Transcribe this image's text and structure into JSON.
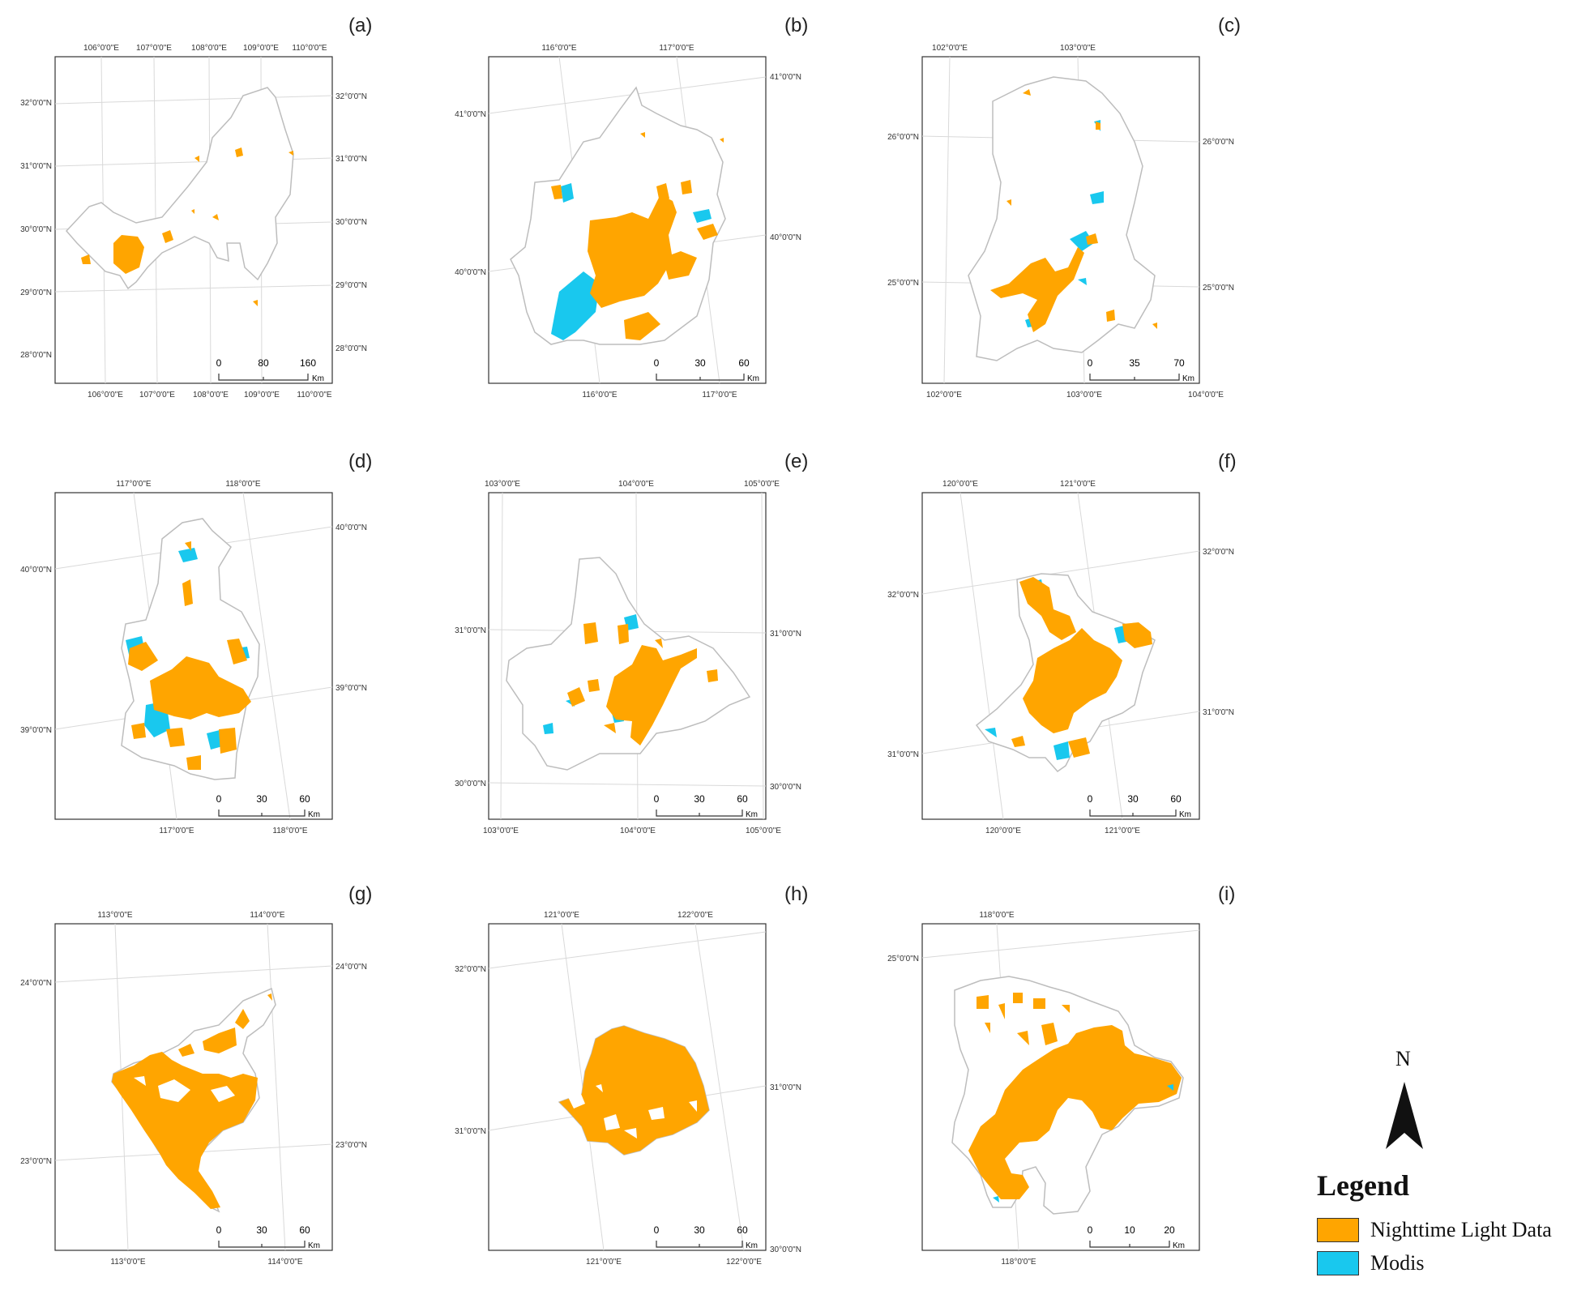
{
  "colors": {
    "light": "#FFA500",
    "modis": "#19C8EE",
    "boundary": "#BDBDBD",
    "grid": "#D9D9D9",
    "frame": "#333333"
  },
  "legend": {
    "title": "Legend",
    "items": [
      {
        "label": "Nighttime Light Data",
        "color": "#FFA500"
      },
      {
        "label": "Modis",
        "color": "#19C8EE"
      }
    ]
  },
  "north_arrow": {
    "label": "N",
    "icon": "north-arrow-icon"
  },
  "scale_unit": "Km",
  "panels": [
    {
      "id": "a",
      "letter": "(a)",
      "scale_labels": [
        "0",
        "80",
        "160"
      ],
      "top_lon": [
        "106°0'0\"E",
        "107°0'0\"E",
        "108°0'0\"E",
        "109°0'0\"E",
        "110°0'0\"E"
      ],
      "bottom_lon": [
        "106°0'0\"E",
        "107°0'0\"E",
        "108°0'0\"E",
        "109°0'0\"E",
        "110°0'0\"E"
      ],
      "left_lat": [
        "32°0'0\"N",
        "31°0'0\"N",
        "30°0'0\"N",
        "29°0'0\"N",
        "28°0'0\"N"
      ],
      "right_lat": [
        "32°0'0\"N",
        "31°0'0\"N",
        "30°0'0\"N",
        "29°0'0\"N",
        "28°0'0\"N"
      ]
    },
    {
      "id": "b",
      "letter": "(b)",
      "scale_labels": [
        "0",
        "30",
        "60"
      ],
      "top_lon": [
        "116°0'0\"E",
        "117°0'0\"E"
      ],
      "bottom_lon": [
        "116°0'0\"E",
        "117°0'0\"E"
      ],
      "left_lat": [
        "41°0'0\"N",
        "40°0'0\"N"
      ],
      "right_lat": [
        "41°0'0\"N",
        "40°0'0\"N"
      ]
    },
    {
      "id": "c",
      "letter": "(c)",
      "scale_labels": [
        "0",
        "35",
        "70"
      ],
      "top_lon": [
        "102°0'0\"E",
        "103°0'0\"E"
      ],
      "bottom_lon": [
        "102°0'0\"E",
        "103°0'0\"E",
        "104°0'0\"E"
      ],
      "left_lat": [
        "26°0'0\"N",
        "25°0'0\"N"
      ],
      "right_lat": [
        "26°0'0\"N",
        "25°0'0\"N"
      ]
    },
    {
      "id": "d",
      "letter": "(d)",
      "scale_labels": [
        "0",
        "30",
        "60"
      ],
      "top_lon": [
        "117°0'0\"E",
        "118°0'0\"E"
      ],
      "bottom_lon": [
        "117°0'0\"E",
        "118°0'0\"E"
      ],
      "left_lat": [
        "40°0'0\"N",
        "39°0'0\"N"
      ],
      "right_lat": [
        "40°0'0\"N",
        "39°0'0\"N"
      ]
    },
    {
      "id": "e",
      "letter": "(e)",
      "scale_labels": [
        "0",
        "30",
        "60"
      ],
      "top_lon": [
        "103°0'0\"E",
        "104°0'0\"E",
        "105°0'0\"E"
      ],
      "bottom_lon": [
        "103°0'0\"E",
        "104°0'0\"E",
        "105°0'0\"E"
      ],
      "left_lat": [
        "31°0'0\"N",
        "30°0'0\"N"
      ],
      "right_lat": [
        "31°0'0\"N",
        "30°0'0\"N"
      ]
    },
    {
      "id": "f",
      "letter": "(f)",
      "scale_labels": [
        "0",
        "30",
        "60"
      ],
      "top_lon": [
        "120°0'0\"E",
        "121°0'0\"E"
      ],
      "bottom_lon": [
        "120°0'0\"E",
        "121°0'0\"E"
      ],
      "left_lat": [
        "32°0'0\"N",
        "31°0'0\"N"
      ],
      "right_lat": [
        "32°0'0\"N",
        "31°0'0\"N"
      ]
    },
    {
      "id": "g",
      "letter": "(g)",
      "scale_labels": [
        "0",
        "30",
        "60"
      ],
      "top_lon": [
        "113°0'0\"E",
        "114°0'0\"E"
      ],
      "bottom_lon": [
        "113°0'0\"E",
        "114°0'0\"E"
      ],
      "left_lat": [
        "24°0'0\"N",
        "23°0'0\"N"
      ],
      "right_lat": [
        "24°0'0\"N",
        "23°0'0\"N"
      ]
    },
    {
      "id": "h",
      "letter": "(h)",
      "scale_labels": [
        "0",
        "30",
        "60"
      ],
      "top_lon": [
        "121°0'0\"E",
        "122°0'0\"E"
      ],
      "bottom_lon": [
        "121°0'0\"E",
        "122°0'0\"E"
      ],
      "left_lat": [
        "32°0'0\"N",
        "31°0'0\"N"
      ],
      "right_lat": [
        "31°0'0\"N",
        "30°0'0\"N"
      ]
    },
    {
      "id": "i",
      "letter": "(i)",
      "scale_labels": [
        "0",
        "10",
        "20"
      ],
      "top_lon": [
        "118°0'0\"E"
      ],
      "bottom_lon": [
        "118°0'0\"E"
      ],
      "left_lat": [
        "25°0'0\"N"
      ],
      "right_lat": []
    }
  ]
}
